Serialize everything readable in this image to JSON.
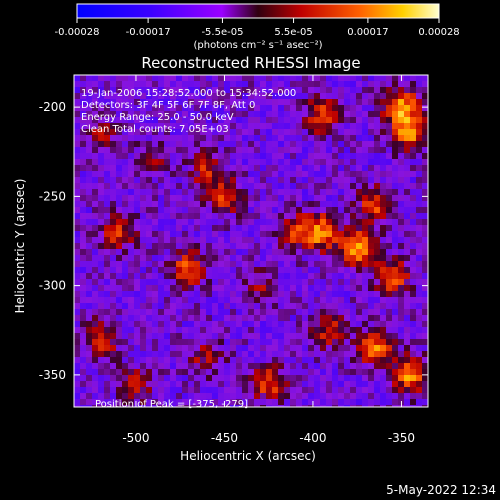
{
  "chart_data": {
    "type": "heatmap",
    "title": "Reconstructed RHESSI Image",
    "xlabel": "Heliocentric X (arcsec)",
    "ylabel": "Heliocentric Y (arcsec)",
    "xlim": [
      -535,
      -335
    ],
    "ylim": [
      -368,
      -182
    ],
    "x_ticks": [
      "-500",
      "-450",
      "-400",
      "-350"
    ],
    "x_tick_values": [
      -500,
      -450,
      -400,
      -350
    ],
    "y_ticks": [
      "-200",
      "-250",
      "-300",
      "-350"
    ],
    "y_tick_values": [
      -200,
      -250,
      -300,
      -350
    ],
    "colorbar": {
      "tick_labels": [
        "-0.00028",
        "-0.00017",
        "-5.5e-05",
        "5.5e-05",
        "0.00017",
        "0.00028"
      ],
      "tick_values": [
        -0.00028,
        -0.00017,
        -5.5e-05,
        5.5e-05,
        0.00017,
        0.00028
      ],
      "range": [
        -0.00028,
        0.00028
      ],
      "units": "(photons cm⁻² s⁻¹ asec⁻²)"
    },
    "annotations": [
      "19-Jan-2006 15:28:52.000 to 15:34:52.000",
      "Detectors: 3F 4F 5F 6F 7F 8F, Att 0",
      "Energy Range: 25.0 - 50.0 keV",
      "Clean      Total counts: 7.05E+03"
    ],
    "peak_label": "Position of Peak = [-375, -279]",
    "hotspots": [
      {
        "x": -350,
        "y": -200,
        "value": 0.00026
      },
      {
        "x": -345,
        "y": -215,
        "value": 0.00024
      },
      {
        "x": -395,
        "y": -205,
        "value": 0.00018
      },
      {
        "x": -375,
        "y": -279,
        "value": 0.00028
      },
      {
        "x": -395,
        "y": -270,
        "value": 0.00024
      },
      {
        "x": -365,
        "y": -255,
        "value": 0.0002
      },
      {
        "x": -355,
        "y": -295,
        "value": 0.0002
      },
      {
        "x": -365,
        "y": -335,
        "value": 0.00022
      },
      {
        "x": -345,
        "y": -350,
        "value": 0.00026
      },
      {
        "x": -390,
        "y": -325,
        "value": 0.00016
      },
      {
        "x": -450,
        "y": -250,
        "value": 0.00018
      },
      {
        "x": -460,
        "y": -235,
        "value": 0.00014
      },
      {
        "x": -470,
        "y": -290,
        "value": 0.0002
      },
      {
        "x": -510,
        "y": -270,
        "value": 0.00016
      },
      {
        "x": -520,
        "y": -330,
        "value": 0.00018
      },
      {
        "x": -500,
        "y": -355,
        "value": 0.00014
      },
      {
        "x": -425,
        "y": -355,
        "value": 0.00018
      },
      {
        "x": -410,
        "y": -270,
        "value": 0.00016
      },
      {
        "x": -460,
        "y": -340,
        "value": 0.00012
      },
      {
        "x": -520,
        "y": -215,
        "value": 0.00012
      },
      {
        "x": -490,
        "y": -230,
        "value": 0.0001
      },
      {
        "x": -430,
        "y": -300,
        "value": 0.0001
      }
    ]
  },
  "footer": {
    "timestamp": "5-May-2022 12:34"
  }
}
